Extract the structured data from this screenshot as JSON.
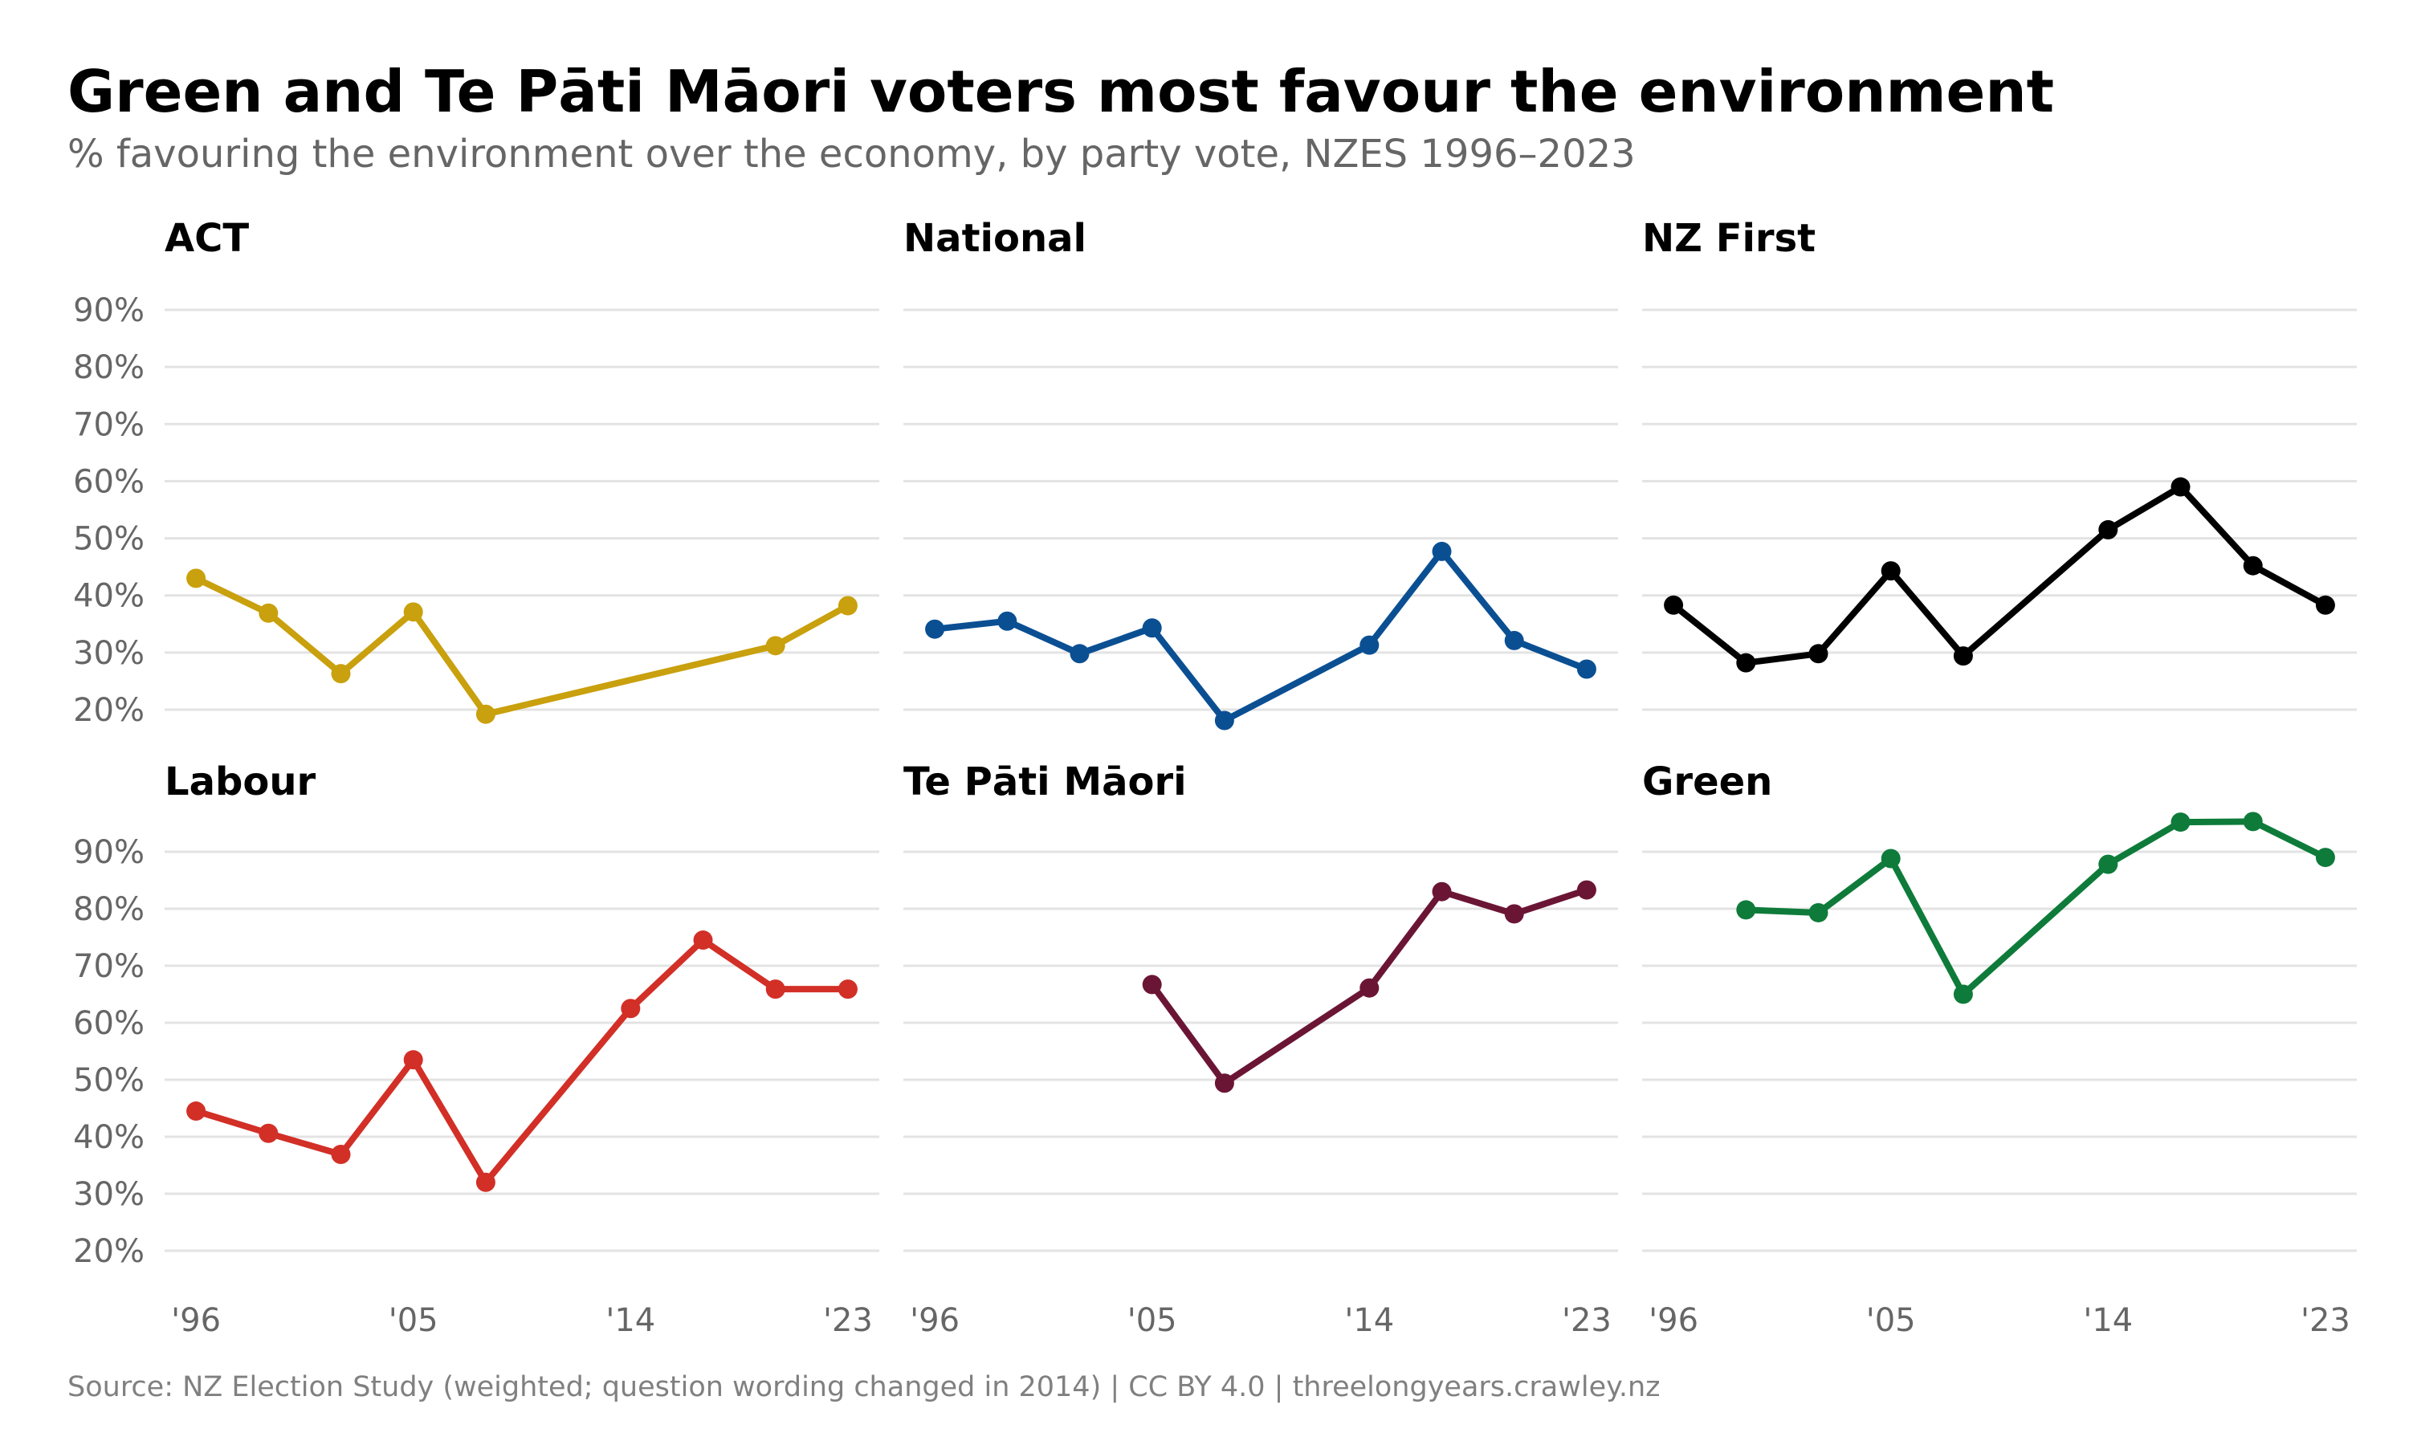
{
  "title": "Green and Te Pāti Māori voters most favour the environment",
  "subtitle": "% favouring the environment over the economy, by party vote, NZES 1996–2023",
  "source": "Source: NZ Election Study (weighted; question wording changed in 2014) | CC BY 4.0 | threelongyears.crawley.nz",
  "chart_data": {
    "type": "line",
    "layout": "small-multiples 2x3",
    "x_ticks": [
      1996,
      2005,
      2014,
      2023
    ],
    "x_tick_labels": [
      "'96",
      "'05",
      "'14",
      "'23"
    ],
    "xlim": [
      1994.7,
      2024.3
    ],
    "y_ticks": [
      20,
      30,
      40,
      50,
      60,
      70,
      80,
      90
    ],
    "y_tick_labels": [
      "20%",
      "30%",
      "40%",
      "50%",
      "60%",
      "70%",
      "80%",
      "90%"
    ],
    "ylim": [
      16,
      92
    ],
    "grid": true,
    "panels": [
      {
        "name": "ACT",
        "color": "#c9a00d",
        "x": [
          1996,
          1999,
          2002,
          2005,
          2008,
          2020,
          2023
        ],
        "y": [
          43,
          36.9,
          26.3,
          37.1,
          19.2,
          31.2,
          38.2
        ]
      },
      {
        "name": "National",
        "color": "#0b4f93",
        "x": [
          1996,
          1999,
          2002,
          2005,
          2008,
          2014,
          2017,
          2020,
          2023
        ],
        "y": [
          34.1,
          35.5,
          29.8,
          34.3,
          18.1,
          31.3,
          47.7,
          32.1,
          27.1
        ]
      },
      {
        "name": "NZ First",
        "color": "#000000",
        "x": [
          1996,
          1999,
          2002,
          2005,
          2008,
          2014,
          2017,
          2020,
          2023
        ],
        "y": [
          38.3,
          28.2,
          29.8,
          44.3,
          29.4,
          51.5,
          59,
          45.2,
          38.3
        ]
      },
      {
        "name": "Labour",
        "color": "#d22f27",
        "x": [
          1996,
          1999,
          2002,
          2005,
          2008,
          2014,
          2017,
          2020,
          2023
        ],
        "y": [
          44.5,
          40.6,
          36.9,
          53.5,
          32,
          62.5,
          74.5,
          65.9,
          65.9
        ]
      },
      {
        "name": "Te Pāti Māori",
        "color": "#6b1535",
        "x": [
          2005,
          2008,
          2014,
          2017,
          2020,
          2023
        ],
        "y": [
          66.7,
          49.4,
          66.1,
          83,
          79.1,
          83.3
        ]
      },
      {
        "name": "Green",
        "color": "#0e7b3a",
        "x": [
          1999,
          2002,
          2005,
          2008,
          2014,
          2017,
          2020,
          2023
        ],
        "y": [
          79.8,
          79.3,
          88.8,
          65,
          87.8,
          95.2,
          95.3,
          89
        ]
      }
    ]
  }
}
